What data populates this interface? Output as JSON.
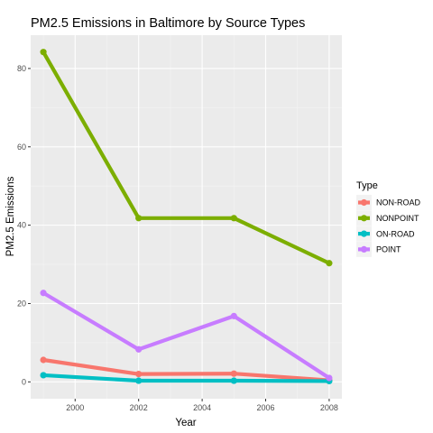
{
  "chart_data": {
    "type": "line",
    "title": "PM2.5 Emissions in Baltimore by Source Types",
    "xlabel": "Year",
    "ylabel": "PM2.5 Emissions",
    "x": [
      1999,
      2002,
      2005,
      2008
    ],
    "xlim": [
      1998.6,
      2008.4
    ],
    "ylim": [
      -4.3,
      88.5
    ],
    "x_ticks": [
      2000,
      2002,
      2004,
      2006,
      2008
    ],
    "y_ticks": [
      0,
      20,
      40,
      60,
      80
    ],
    "grid": true,
    "legend": {
      "title": "Type",
      "position": "right"
    },
    "series": [
      {
        "name": "NON-ROAD",
        "color": "#F8766D",
        "values": [
          5.6,
          2.0,
          2.1,
          0.4
        ]
      },
      {
        "name": "NONPOINT",
        "color": "#7CAE00",
        "values": [
          84.2,
          41.8,
          41.8,
          30.3
        ]
      },
      {
        "name": "ON-ROAD",
        "color": "#00BFC4",
        "values": [
          1.7,
          0.3,
          0.3,
          0.2
        ]
      },
      {
        "name": "POINT",
        "color": "#C77CFF",
        "values": [
          22.7,
          8.3,
          16.8,
          1.0
        ]
      }
    ]
  }
}
